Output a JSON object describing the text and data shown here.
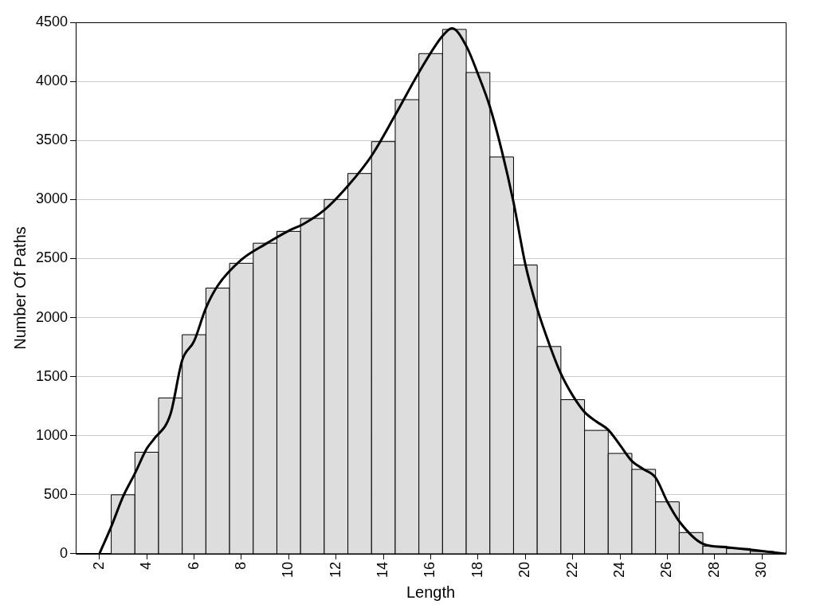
{
  "chart_data": {
    "type": "histogram",
    "xlabel": "Length",
    "ylabel": "Number Of Paths",
    "bins": [
      2.5,
      3.5,
      4.5,
      5.5,
      6.5,
      7.5,
      8.5,
      9.5,
      10.5,
      11.5,
      12.5,
      13.5,
      14.5,
      15.5,
      16.5,
      17.5,
      18.5,
      19.5,
      20.5,
      21.5,
      22.5,
      23.5,
      24.5,
      25.5,
      26.5,
      27.5,
      28.5,
      29.5,
      30.5
    ],
    "values": [
      500,
      860,
      1320,
      1855,
      2250,
      2460,
      2630,
      2730,
      2840,
      3000,
      3220,
      3490,
      3845,
      4235,
      4440,
      4075,
      3360,
      2445,
      1755,
      1305,
      1045,
      850,
      715,
      440,
      180,
      65,
      45,
      20
    ],
    "color": "#dddddd",
    "series": [
      {
        "type": "line",
        "color": "#000000",
        "x": [
          2,
          2.5,
          3,
          3.5,
          4,
          4.3,
          5,
          5.5,
          6,
          6.5,
          7,
          8,
          9,
          10,
          10.6,
          11.5,
          12.5,
          13.5,
          14.5,
          15.5,
          16.5,
          16.9,
          17.5,
          18,
          18.5,
          19,
          19.5,
          20,
          20.5,
          21,
          21.5,
          22,
          22.5,
          23,
          23.5,
          24,
          24.5,
          25,
          25.5,
          26,
          26.5,
          27.5,
          28.5,
          29.5,
          31
        ],
        "values": [
          0,
          230,
          485,
          680,
          890,
          970,
          1180,
          1640,
          1800,
          2080,
          2270,
          2490,
          2620,
          2735,
          2790,
          2910,
          3115,
          3370,
          3715,
          4075,
          4385,
          4450,
          4300,
          4060,
          3785,
          3415,
          2975,
          2450,
          2075,
          1780,
          1525,
          1340,
          1200,
          1120,
          1050,
          920,
          785,
          715,
          645,
          440,
          275,
          85,
          55,
          35,
          0
        ]
      }
    ],
    "xlim": [
      1,
      31
    ],
    "xticks": [
      2,
      4,
      6,
      8,
      10,
      12,
      14,
      16,
      18,
      20,
      22,
      24,
      26,
      28,
      30
    ],
    "ylim": [
      0,
      4500
    ],
    "yticks": [
      0,
      500,
      1000,
      1500,
      2000,
      2500,
      3000,
      3500,
      4000,
      4500
    ],
    "grid": "y"
  }
}
